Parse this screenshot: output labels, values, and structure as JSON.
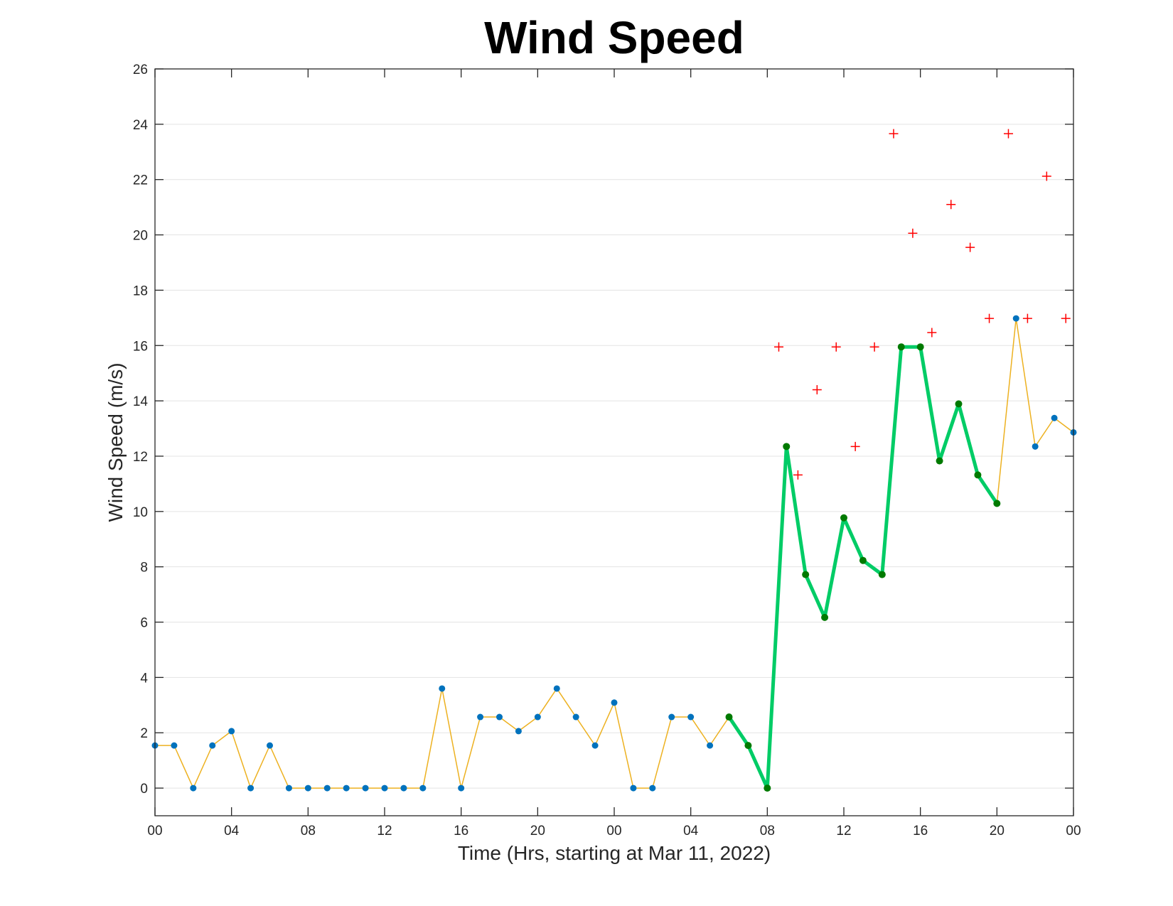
{
  "chart_data": {
    "type": "line",
    "title": "Wind Speed",
    "xlabel": "Time (Hrs, starting at Mar 11, 2022)",
    "ylabel": "Wind Speed (m/s)",
    "xlim": [
      0,
      48
    ],
    "ylim": [
      -1,
      26
    ],
    "x_ticks": [
      0,
      4,
      8,
      12,
      16,
      20,
      24,
      28,
      32,
      36,
      40,
      44,
      48
    ],
    "x_tick_labels": [
      "00",
      "04",
      "08",
      "12",
      "16",
      "20",
      "00",
      "04",
      "08",
      "12",
      "16",
      "20",
      "00"
    ],
    "y_ticks": [
      0,
      2,
      4,
      6,
      8,
      10,
      12,
      14,
      16,
      18,
      20,
      22,
      24,
      26
    ],
    "grid": "horizontal",
    "series": [
      {
        "role": "wind-speed",
        "marker": "dot",
        "line_color": "#EDB120",
        "marker_color": "#0072BD",
        "x": [
          0,
          1,
          2,
          3,
          4,
          5,
          6,
          7,
          8,
          9,
          10,
          11,
          12,
          13,
          14,
          15,
          16,
          17,
          18,
          19,
          20,
          21,
          22,
          23,
          24,
          25,
          26,
          27,
          28,
          29,
          30,
          31,
          32,
          33,
          34,
          35,
          36,
          37,
          38,
          39,
          40,
          41,
          42,
          43,
          44,
          45,
          46,
          47,
          48
        ],
        "values": [
          1.54,
          1.54,
          0,
          1.54,
          2.06,
          0,
          1.54,
          0,
          0,
          0,
          0,
          0,
          0,
          0,
          0,
          3.6,
          0,
          2.57,
          2.57,
          2.06,
          2.57,
          3.6,
          2.57,
          1.54,
          3.09,
          0,
          0,
          2.57,
          2.57,
          1.54,
          2.57,
          1.54,
          0,
          12.35,
          7.72,
          6.17,
          9.77,
          8.23,
          7.72,
          15.95,
          15.95,
          11.83,
          13.89,
          11.32,
          10.29,
          16.98,
          12.35,
          13.38,
          12.86
        ]
      },
      {
        "role": "highlighted-period",
        "marker": "dot",
        "line_color": "#00CC66",
        "marker_color": "#007A00",
        "x": [
          30,
          31,
          32,
          33,
          34,
          35,
          36,
          37,
          38,
          39,
          40,
          41,
          42,
          43,
          44
        ],
        "values": [
          2.57,
          1.54,
          0,
          12.35,
          7.72,
          6.17,
          9.77,
          8.23,
          7.72,
          15.95,
          15.95,
          11.83,
          13.89,
          11.32,
          10.29
        ]
      },
      {
        "role": "gusts",
        "marker": "plus",
        "marker_color": "#FF0000",
        "x": [
          32.6,
          33.6,
          34.6,
          35.6,
          36.6,
          37.6,
          38.6,
          39.6,
          40.6,
          41.6,
          42.6,
          43.6,
          44.6,
          45.6,
          46.6,
          47.6
        ],
        "values": [
          15.95,
          11.32,
          14.4,
          15.95,
          12.35,
          15.95,
          23.66,
          20.06,
          16.47,
          21.1,
          19.55,
          16.98,
          23.66,
          16.98,
          22.12,
          16.98
        ]
      }
    ]
  }
}
